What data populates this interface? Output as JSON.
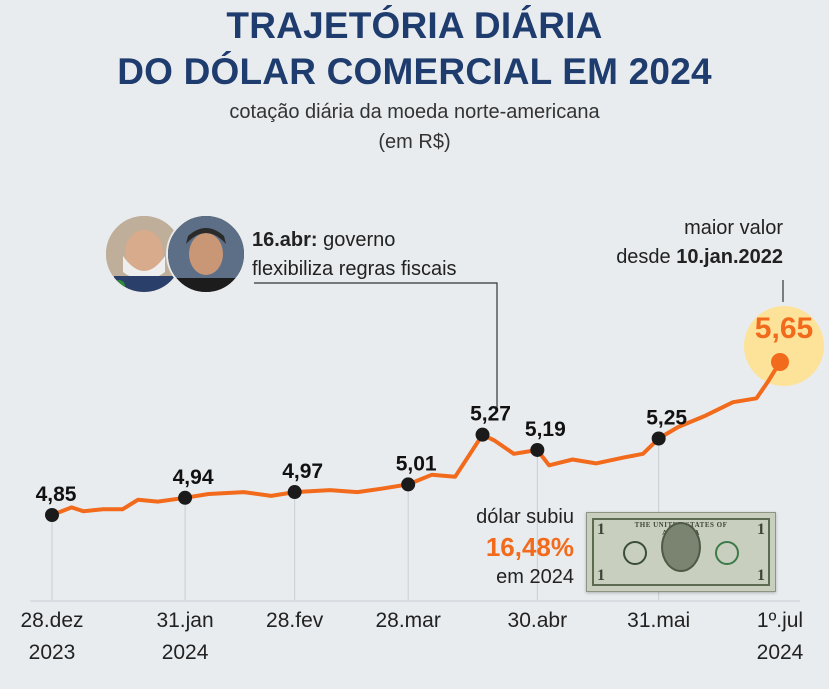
{
  "title_line1": "TRAJETÓRIA DIÁRIA",
  "title_line2": "DO DÓLAR COMERCIAL EM 2024",
  "subtitle_line1": "cotação diária da moeda norte-americana",
  "subtitle_line2": "(em R$)",
  "colors": {
    "title": "#1f3c6e",
    "line": "#f26a1b",
    "highlight": "#fde39a",
    "marker": "#1a1a1a"
  },
  "annotation_policy": {
    "date": "16.abr:",
    "text_line1": "governo",
    "text_line2": "flexibiliza regras fiscais"
  },
  "annotation_max": {
    "line1": "maior valor",
    "line2_prefix": "desde",
    "line2_date": "10.jan.2022"
  },
  "callout": {
    "line1": "dólar subiu",
    "value": "16,48%",
    "line3": "em 2024"
  },
  "bill": {
    "header": "THE UNITED STATES OF AMERICA",
    "denomination": "1"
  },
  "chart_data": {
    "type": "line",
    "title": "TRAJETÓRIA DIÁRIA DO DÓLAR COMERCIAL EM 2024",
    "ylabel": "R$",
    "ylim": [
      4.6,
      5.7
    ],
    "grid": false,
    "xticks": [
      {
        "line1": "28.dez",
        "line2": "2023"
      },
      {
        "line1": "31.jan",
        "line2": "2024"
      },
      {
        "line1": "28.fev",
        "line2": ""
      },
      {
        "line1": "28.mar",
        "line2": ""
      },
      {
        "line1": "30.abr",
        "line2": ""
      },
      {
        "line1": "31.mai",
        "line2": ""
      },
      {
        "line1": "1º.jul",
        "line2": "2024"
      }
    ],
    "highlighted_points": [
      {
        "date": "28.dez.2023",
        "value": 4.85,
        "label": "4,85"
      },
      {
        "date": "31.jan.2024",
        "value": 4.94,
        "label": "4,94"
      },
      {
        "date": "28.fev.2024",
        "value": 4.97,
        "label": "4,97"
      },
      {
        "date": "28.mar.2024",
        "value": 5.01,
        "label": "5,01"
      },
      {
        "date": "16.abr.2024",
        "value": 5.27,
        "label": "5,27"
      },
      {
        "date": "30.abr.2024",
        "value": 5.19,
        "label": "5,19"
      },
      {
        "date": "31.mai.2024",
        "value": 5.25,
        "label": "5,25"
      },
      {
        "date": "1º.jul.2024",
        "value": 5.65,
        "label": "5,65"
      }
    ],
    "series": [
      {
        "values": [
          [
            "28.dez.2023",
            4.85
          ],
          [
            "02.jan.2024",
            4.89
          ],
          [
            "05.jan.2024",
            4.87
          ],
          [
            "10.jan.2024",
            4.88
          ],
          [
            "15.jan.2024",
            4.88
          ],
          [
            "19.jan.2024",
            4.93
          ],
          [
            "24.jan.2024",
            4.92
          ],
          [
            "31.jan.2024",
            4.94
          ],
          [
            "06.fev.2024",
            4.96
          ],
          [
            "15.fev.2024",
            4.97
          ],
          [
            "22.fev.2024",
            4.95
          ],
          [
            "28.fev.2024",
            4.97
          ],
          [
            "08.mar.2024",
            4.98
          ],
          [
            "15.mar.2024",
            4.97
          ],
          [
            "22.mar.2024",
            4.99
          ],
          [
            "28.mar.2024",
            5.01
          ],
          [
            "03.abr.2024",
            5.06
          ],
          [
            "09.abr.2024",
            5.05
          ],
          [
            "16.abr.2024",
            5.27
          ],
          [
            "19.abr.2024",
            5.24
          ],
          [
            "24.abr.2024",
            5.17
          ],
          [
            "30.abr.2024",
            5.19
          ],
          [
            "03.mai.2024",
            5.11
          ],
          [
            "09.mai.2024",
            5.14
          ],
          [
            "15.mai.2024",
            5.12
          ],
          [
            "22.mai.2024",
            5.15
          ],
          [
            "27.mai.2024",
            5.17
          ],
          [
            "31.mai.2024",
            5.25
          ],
          [
            "05.jun.2024",
            5.31
          ],
          [
            "12.jun.2024",
            5.37
          ],
          [
            "19.jun.2024",
            5.44
          ],
          [
            "25.jun.2024",
            5.46
          ],
          [
            "28.jun.2024",
            5.55
          ],
          [
            "1º.jul.2024",
            5.65
          ]
        ]
      }
    ]
  }
}
